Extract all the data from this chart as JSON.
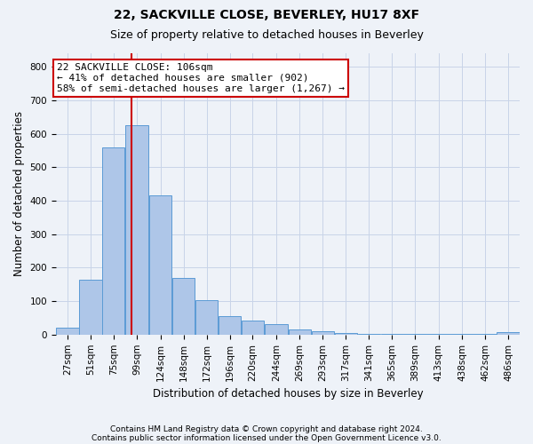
{
  "title_line1": "22, SACKVILLE CLOSE, BEVERLEY, HU17 8XF",
  "title_line2": "Size of property relative to detached houses in Beverley",
  "xlabel": "Distribution of detached houses by size in Beverley",
  "ylabel": "Number of detached properties",
  "bin_edges": [
    27,
    51,
    75,
    99,
    124,
    148,
    172,
    196,
    220,
    244,
    269,
    293,
    317,
    341,
    365,
    389,
    413,
    438,
    462,
    486,
    510
  ],
  "bar_heights": [
    20,
    165,
    560,
    625,
    415,
    170,
    102,
    55,
    42,
    32,
    15,
    10,
    5,
    3,
    2,
    1,
    1,
    1,
    1,
    7
  ],
  "bar_color": "#aec6e8",
  "bar_edge_color": "#5b9bd5",
  "grid_color": "#c8d4e8",
  "property_size": 106,
  "red_line_color": "#cc0000",
  "annotation_text": "22 SACKVILLE CLOSE: 106sqm\n← 41% of detached houses are smaller (902)\n58% of semi-detached houses are larger (1,267) →",
  "annotation_box_color": "#ffffff",
  "annotation_box_edge_color": "#cc0000",
  "ylim": [
    0,
    840
  ],
  "yticks": [
    0,
    100,
    200,
    300,
    400,
    500,
    600,
    700,
    800
  ],
  "footnote_line1": "Contains HM Land Registry data © Crown copyright and database right 2024.",
  "footnote_line2": "Contains public sector information licensed under the Open Government Licence v3.0.",
  "bg_color": "#eef2f8",
  "title_fontsize": 10,
  "subtitle_fontsize": 9,
  "axis_label_fontsize": 8.5,
  "tick_fontsize": 7.5,
  "footnote_fontsize": 6.5,
  "annotation_fontsize": 8
}
